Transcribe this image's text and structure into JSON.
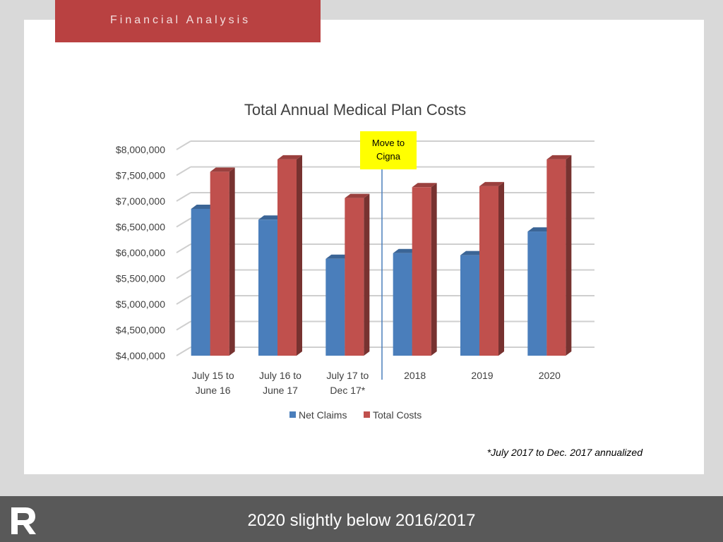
{
  "header": {
    "title": "Financial Analysis"
  },
  "footnote": "*July 2017 to Dec. 2017 annualized",
  "footer": {
    "caption": "2020 slightly below 2016/2017",
    "logo_icon": "r-logo-icon"
  },
  "colors": {
    "net_claims": "#4a7ebb",
    "total_costs": "#c0504d",
    "callout": "#ffff00",
    "header": "#b94141"
  },
  "chart_data": {
    "type": "bar",
    "title": "Total Annual Medical Plan Costs",
    "categories": [
      [
        "July 15 to",
        "June 16"
      ],
      [
        "July 16 to",
        "June 17"
      ],
      [
        "July 17 to",
        "Dec 17*"
      ],
      [
        "2018"
      ],
      [
        "2019"
      ],
      [
        "2020"
      ]
    ],
    "series": [
      {
        "name": "Net Claims",
        "values": [
          6850000,
          6640000,
          5880000,
          5990000,
          5950000,
          6410000
        ]
      },
      {
        "name": "Total Costs",
        "values": [
          7570000,
          7810000,
          7060000,
          7270000,
          7290000,
          7810000
        ]
      }
    ],
    "ylim": [
      4000000,
      8000000
    ],
    "y_ticks": [
      "$4,000,000",
      "$4,500,000",
      "$5,000,000",
      "$5,500,000",
      "$6,000,000",
      "$6,500,000",
      "$7,000,000",
      "$7,500,000",
      "$8,000,000"
    ],
    "y_tick_values": [
      4000000,
      4500000,
      5000000,
      5500000,
      6000000,
      6500000,
      7000000,
      7500000,
      8000000
    ],
    "annotation": {
      "text": [
        "Move to",
        "Cigna"
      ],
      "after_category_index": 2
    },
    "legend": "bottom"
  }
}
